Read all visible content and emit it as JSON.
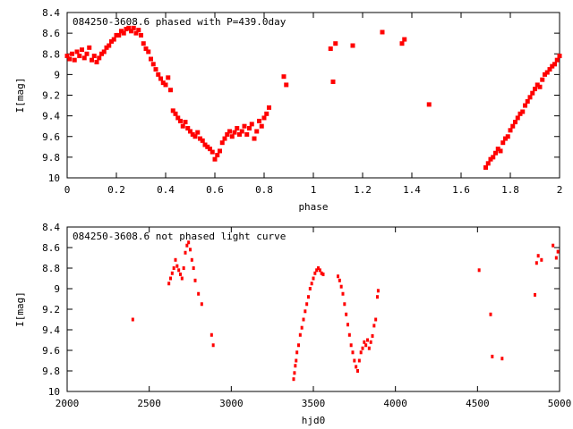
{
  "chart_data": [
    {
      "type": "scatter",
      "title": "084250-3608.6 phased with P=439.0day",
      "xlabel": "phase",
      "ylabel": "I[mag]",
      "xlim": [
        0,
        2
      ],
      "ylim": [
        10,
        8.4
      ],
      "y_inverted": true,
      "grid": false,
      "marker_color": "#ff0000",
      "x_ticks": [
        "0",
        "0.2",
        "0.4",
        "0.6",
        "0.8",
        "1",
        "1.2",
        "1.4",
        "1.6",
        "1.8",
        "2"
      ],
      "y_ticks": [
        "8.4",
        "8.6",
        "8.8",
        "9",
        "9.2",
        "9.4",
        "9.6",
        "9.8",
        "10"
      ],
      "series": [
        {
          "points": [
            [
              0.0,
              8.82
            ],
            [
              0.01,
              8.85
            ],
            [
              0.02,
              8.8
            ],
            [
              0.03,
              8.86
            ],
            [
              0.04,
              8.78
            ],
            [
              0.05,
              8.82
            ],
            [
              0.06,
              8.76
            ],
            [
              0.07,
              8.84
            ],
            [
              0.08,
              8.8
            ],
            [
              0.09,
              8.74
            ],
            [
              0.1,
              8.86
            ],
            [
              0.11,
              8.82
            ],
            [
              0.12,
              8.88
            ],
            [
              0.13,
              8.84
            ],
            [
              0.14,
              8.8
            ],
            [
              0.15,
              8.78
            ],
            [
              0.16,
              8.74
            ],
            [
              0.17,
              8.72
            ],
            [
              0.18,
              8.68
            ],
            [
              0.19,
              8.66
            ],
            [
              0.2,
              8.62
            ],
            [
              0.21,
              8.62
            ],
            [
              0.22,
              8.58
            ],
            [
              0.23,
              8.6
            ],
            [
              0.24,
              8.56
            ],
            [
              0.25,
              8.55
            ],
            [
              0.26,
              8.58
            ],
            [
              0.27,
              8.55
            ],
            [
              0.28,
              8.6
            ],
            [
              0.29,
              8.57
            ],
            [
              0.3,
              8.62
            ],
            [
              0.31,
              8.7
            ],
            [
              0.32,
              8.75
            ],
            [
              0.33,
              8.78
            ],
            [
              0.34,
              8.85
            ],
            [
              0.35,
              8.9
            ],
            [
              0.36,
              8.95
            ],
            [
              0.37,
              9.0
            ],
            [
              0.38,
              9.04
            ],
            [
              0.39,
              9.08
            ],
            [
              0.4,
              9.1
            ],
            [
              0.41,
              9.03
            ],
            [
              0.42,
              9.15
            ],
            [
              0.43,
              9.35
            ],
            [
              0.44,
              9.38
            ],
            [
              0.45,
              9.42
            ],
            [
              0.46,
              9.45
            ],
            [
              0.47,
              9.5
            ],
            [
              0.48,
              9.46
            ],
            [
              0.49,
              9.52
            ],
            [
              0.5,
              9.55
            ],
            [
              0.51,
              9.58
            ],
            [
              0.52,
              9.6
            ],
            [
              0.53,
              9.56
            ],
            [
              0.54,
              9.62
            ],
            [
              0.55,
              9.64
            ],
            [
              0.56,
              9.68
            ],
            [
              0.57,
              9.7
            ],
            [
              0.58,
              9.72
            ],
            [
              0.59,
              9.75
            ],
            [
              0.6,
              9.82
            ],
            [
              0.61,
              9.78
            ],
            [
              0.62,
              9.74
            ],
            [
              0.63,
              9.66
            ],
            [
              0.64,
              9.62
            ],
            [
              0.65,
              9.58
            ],
            [
              0.66,
              9.55
            ],
            [
              0.67,
              9.6
            ],
            [
              0.68,
              9.56
            ],
            [
              0.69,
              9.52
            ],
            [
              0.7,
              9.58
            ],
            [
              0.71,
              9.55
            ],
            [
              0.72,
              9.5
            ],
            [
              0.73,
              9.58
            ],
            [
              0.74,
              9.52
            ],
            [
              0.75,
              9.48
            ],
            [
              0.76,
              9.62
            ],
            [
              0.77,
              9.55
            ],
            [
              0.78,
              9.45
            ],
            [
              0.79,
              9.5
            ],
            [
              0.8,
              9.42
            ],
            [
              0.81,
              9.38
            ],
            [
              0.82,
              9.32
            ],
            [
              0.88,
              9.02
            ],
            [
              0.89,
              9.1
            ],
            [
              1.07,
              8.75
            ],
            [
              1.08,
              9.07
            ],
            [
              1.09,
              8.7
            ],
            [
              1.16,
              8.72
            ],
            [
              1.28,
              8.59
            ],
            [
              1.36,
              8.7
            ],
            [
              1.37,
              8.66
            ],
            [
              1.47,
              9.29
            ],
            [
              1.7,
              9.9
            ],
            [
              1.71,
              9.86
            ],
            [
              1.72,
              9.82
            ],
            [
              1.73,
              9.8
            ],
            [
              1.74,
              9.76
            ],
            [
              1.75,
              9.72
            ],
            [
              1.76,
              9.74
            ],
            [
              1.77,
              9.66
            ],
            [
              1.78,
              9.62
            ],
            [
              1.79,
              9.6
            ],
            [
              1.8,
              9.54
            ],
            [
              1.81,
              9.5
            ],
            [
              1.82,
              9.46
            ],
            [
              1.83,
              9.42
            ],
            [
              1.84,
              9.38
            ],
            [
              1.85,
              9.36
            ],
            [
              1.86,
              9.3
            ],
            [
              1.87,
              9.26
            ],
            [
              1.88,
              9.22
            ],
            [
              1.89,
              9.18
            ],
            [
              1.9,
              9.14
            ],
            [
              1.91,
              9.1
            ],
            [
              1.92,
              9.12
            ],
            [
              1.93,
              9.05
            ],
            [
              1.94,
              9.0
            ],
            [
              1.95,
              8.98
            ],
            [
              1.96,
              8.95
            ],
            [
              1.97,
              8.92
            ],
            [
              1.98,
              8.9
            ],
            [
              1.99,
              8.86
            ],
            [
              2.0,
              8.82
            ]
          ]
        }
      ]
    },
    {
      "type": "scatter",
      "title": "084250-3608.6 not phased light curve",
      "xlabel": "hjd0",
      "ylabel": "I[mag]",
      "xlim": [
        2000,
        5000
      ],
      "ylim": [
        10,
        8.4
      ],
      "y_inverted": true,
      "grid": false,
      "marker_color": "#ff0000",
      "x_ticks": [
        "2000",
        "2500",
        "3000",
        "3500",
        "4000",
        "4500",
        "5000"
      ],
      "y_ticks": [
        "8.4",
        "8.6",
        "8.8",
        "9",
        "9.2",
        "9.4",
        "9.6",
        "9.8",
        "10"
      ],
      "series": [
        {
          "points": [
            [
              2400,
              9.3
            ],
            [
              2620,
              8.95
            ],
            [
              2630,
              8.9
            ],
            [
              2640,
              8.85
            ],
            [
              2650,
              8.8
            ],
            [
              2660,
              8.72
            ],
            [
              2670,
              8.78
            ],
            [
              2680,
              8.82
            ],
            [
              2690,
              8.86
            ],
            [
              2700,
              8.9
            ],
            [
              2710,
              8.8
            ],
            [
              2720,
              8.65
            ],
            [
              2730,
              8.58
            ],
            [
              2740,
              8.55
            ],
            [
              2750,
              8.62
            ],
            [
              2760,
              8.72
            ],
            [
              2770,
              8.8
            ],
            [
              2780,
              8.92
            ],
            [
              2800,
              9.05
            ],
            [
              2820,
              9.15
            ],
            [
              2880,
              9.45
            ],
            [
              2890,
              9.55
            ],
            [
              3380,
              9.88
            ],
            [
              3385,
              9.82
            ],
            [
              3390,
              9.75
            ],
            [
              3395,
              9.7
            ],
            [
              3400,
              9.62
            ],
            [
              3410,
              9.55
            ],
            [
              3420,
              9.45
            ],
            [
              3430,
              9.38
            ],
            [
              3440,
              9.3
            ],
            [
              3450,
              9.22
            ],
            [
              3460,
              9.15
            ],
            [
              3470,
              9.08
            ],
            [
              3480,
              9.0
            ],
            [
              3490,
              8.95
            ],
            [
              3500,
              8.9
            ],
            [
              3510,
              8.85
            ],
            [
              3520,
              8.82
            ],
            [
              3530,
              8.8
            ],
            [
              3540,
              8.82
            ],
            [
              3550,
              8.85
            ],
            [
              3560,
              8.86
            ],
            [
              3650,
              8.88
            ],
            [
              3660,
              8.92
            ],
            [
              3670,
              8.98
            ],
            [
              3680,
              9.05
            ],
            [
              3690,
              9.15
            ],
            [
              3700,
              9.25
            ],
            [
              3710,
              9.35
            ],
            [
              3720,
              9.45
            ],
            [
              3730,
              9.55
            ],
            [
              3740,
              9.62
            ],
            [
              3750,
              9.7
            ],
            [
              3760,
              9.76
            ],
            [
              3770,
              9.8
            ],
            [
              3780,
              9.7
            ],
            [
              3790,
              9.62
            ],
            [
              3800,
              9.58
            ],
            [
              3810,
              9.52
            ],
            [
              3820,
              9.55
            ],
            [
              3830,
              9.5
            ],
            [
              3840,
              9.58
            ],
            [
              3850,
              9.52
            ],
            [
              3860,
              9.46
            ],
            [
              3870,
              9.36
            ],
            [
              3880,
              9.3
            ],
            [
              3890,
              9.08
            ],
            [
              3895,
              9.02
            ],
            [
              4510,
              8.82
            ],
            [
              4580,
              9.25
            ],
            [
              4590,
              9.66
            ],
            [
              4650,
              9.68
            ],
            [
              4850,
              9.06
            ],
            [
              4860,
              8.75
            ],
            [
              4870,
              8.68
            ],
            [
              4890,
              8.72
            ],
            [
              4960,
              8.58
            ],
            [
              4980,
              8.7
            ],
            [
              4990,
              8.64
            ]
          ]
        }
      ]
    }
  ]
}
